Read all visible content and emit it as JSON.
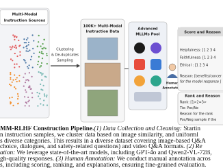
{
  "figure": {
    "sources": {
      "title_1": "Multi-Modal",
      "title_2": "Instruction Sources"
    },
    "sampling": {
      "line_1": "Clustering",
      "line_2": "& De-duplicates",
      "line_3": "Sampling"
    },
    "data": {
      "line_1": "100K+ Multi-Modal",
      "line_2": "Instruction Data"
    },
    "pool": {
      "line_1": "Advanced",
      "line_2": "MLLMs Pool"
    },
    "annotators": {
      "line_1": "Human",
      "line_2": "Annotators"
    },
    "score": {
      "title": "Score and Reason",
      "items": [
        "Helpfulness: [1 2 3 4",
        "Faithfulness: [1 2 3 4",
        "Ethical : [1 2 3 4"
      ],
      "reason_1": "Reason: [benefits/concer",
      "reason_2": "for the model response ]"
    },
    "rank": {
      "title": "Rank and Reason",
      "items": [
        "Rank: [1>2=3>",
        "Tie: Pos/Ne",
        "Reason for the rank",
        "Pos/Neg sample if the"
      ]
    }
  },
  "caption": {
    "lines": [
      [
        "MM-RLHF Construction Pipeline.",
        "(1) Data Collection and Cleaning:",
        " Startin"
      ],
      [
        "n instruction samples, we cluster data based on image similarity, and uniforml"
      ],
      [
        "s diverse categories. This results in a diverse dataset covering image-based Q&A"
      ],
      [
        "choice, dialogues, and safety-related questions) and video Q&A formats. ",
        "(2) Re"
      ],
      [
        "ation:",
        " We leverage state-of-the-art models, including GPT-4o and Qwen2-VL-72B,"
      ],
      [
        "gh-quality responses. ",
        "(3) Human Annotation:",
        " We conduct manual annotation acros"
      ],
      [
        "s, including scoring, ranking, and explanations, ensuring fine-grained evaluation."
      ]
    ]
  }
}
